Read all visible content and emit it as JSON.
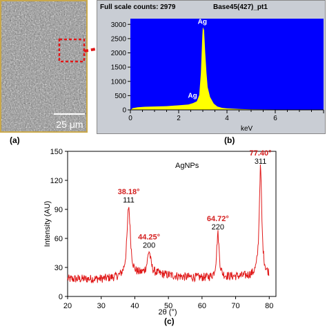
{
  "panels": {
    "a": {
      "label": "(a)",
      "scale_bar": "25 μm"
    },
    "b": {
      "label": "(b)",
      "full_scale": "Full scale counts: 2979",
      "spectrum_name": "Base45(427)_pt1",
      "xlabel": "keV",
      "colors": {
        "plot_bg": "#0000ff",
        "spectrum": "#ffff00",
        "frame": "#c9cdd4"
      }
    },
    "c": {
      "label": "(c)",
      "colors": {
        "line": "#e01818",
        "angle_label": "#d42020"
      }
    }
  },
  "chart_data": [
    {
      "type": "area",
      "panel": "b",
      "xlabel": "keV",
      "ylabel": "",
      "xlim": [
        0,
        8
      ],
      "ylim": [
        0,
        3200
      ],
      "xticks": [
        0,
        2,
        4,
        6
      ],
      "yticks": [
        0,
        500,
        1000,
        1500,
        2000,
        2500,
        3000
      ],
      "points": [
        [
          0.0,
          0
        ],
        [
          0.1,
          60
        ],
        [
          0.3,
          90
        ],
        [
          0.6,
          110
        ],
        [
          1.0,
          120
        ],
        [
          1.5,
          130
        ],
        [
          2.0,
          160
        ],
        [
          2.4,
          190
        ],
        [
          2.6,
          240
        ],
        [
          2.75,
          300
        ],
        [
          2.85,
          520
        ],
        [
          2.92,
          1300
        ],
        [
          2.98,
          2600
        ],
        [
          3.0,
          2900
        ],
        [
          3.05,
          2800
        ],
        [
          3.1,
          2000
        ],
        [
          3.15,
          1300
        ],
        [
          3.2,
          800
        ],
        [
          3.3,
          450
        ],
        [
          3.45,
          220
        ],
        [
          3.6,
          120
        ],
        [
          3.8,
          70
        ],
        [
          4.0,
          50
        ],
        [
          4.5,
          30
        ],
        [
          5.0,
          20
        ],
        [
          6.0,
          12
        ],
        [
          7.0,
          8
        ],
        [
          8.0,
          5
        ]
      ],
      "peaks": [
        {
          "label": "Ag",
          "x": 2.98,
          "y": 2900
        },
        {
          "label": "Ag",
          "x": 2.63,
          "y": 300
        }
      ]
    },
    {
      "type": "line",
      "panel": "c",
      "title": "AgNPs",
      "xlabel": "2θ (°)",
      "ylabel": "Intensity (AU)",
      "xlim": [
        20,
        82
      ],
      "ylim": [
        0,
        150
      ],
      "xticks": [
        20,
        30,
        40,
        50,
        60,
        70,
        80
      ],
      "yticks": [
        0,
        30,
        60,
        90,
        120,
        150
      ],
      "baseline": [
        [
          20,
          18
        ],
        [
          30,
          18
        ],
        [
          38,
          20
        ],
        [
          41,
          22
        ],
        [
          44,
          23
        ],
        [
          47,
          23
        ],
        [
          55,
          20
        ],
        [
          63,
          19
        ],
        [
          67,
          20
        ],
        [
          75,
          21
        ],
        [
          80,
          22
        ]
      ],
      "peaks": [
        {
          "angle": 38.18,
          "label": "38.18°",
          "hkl": "111",
          "height": 93,
          "width": 0.6
        },
        {
          "angle": 44.25,
          "label": "44.25°",
          "hkl": "200",
          "height": 46,
          "width": 0.6
        },
        {
          "angle": 64.72,
          "label": "64.72°",
          "hkl": "220",
          "height": 65,
          "width": 0.45
        },
        {
          "angle": 77.4,
          "label": "77.40°",
          "hkl": "311",
          "height": 133,
          "width": 0.45
        }
      ]
    }
  ]
}
